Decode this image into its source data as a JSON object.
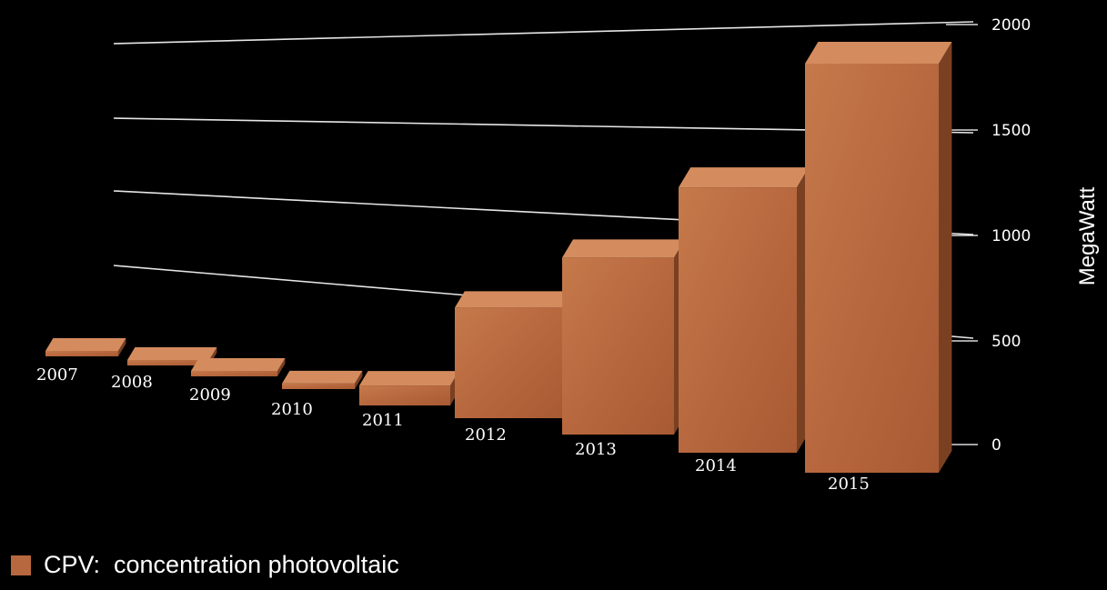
{
  "chart_data": {
    "type": "bar",
    "title": "",
    "xlabel": "",
    "ylabel": "MegaWatt",
    "ylim": [
      0,
      2000
    ],
    "yticks": [
      "2000",
      "1500",
      "1000",
      "500",
      "0"
    ],
    "categories": [
      "2007",
      "2008",
      "2009",
      "2010",
      "2011",
      "2012",
      "2013",
      "2014",
      "2015"
    ],
    "series": [
      {
        "name": "CPV:  concentration photovoltaic",
        "values": [
          10,
          15,
          20,
          25,
          90,
          500,
          800,
          1200,
          1850
        ]
      }
    ],
    "grid": true,
    "legend": "bottom-left",
    "colors": {
      "bar_front": "#b8683e",
      "bar_top": "#d48c5e",
      "bar_side": "#7a4022",
      "background": "#000000",
      "grid": "#ffffff"
    }
  },
  "legend": {
    "label": "CPV:  concentration photovoltaic"
  }
}
